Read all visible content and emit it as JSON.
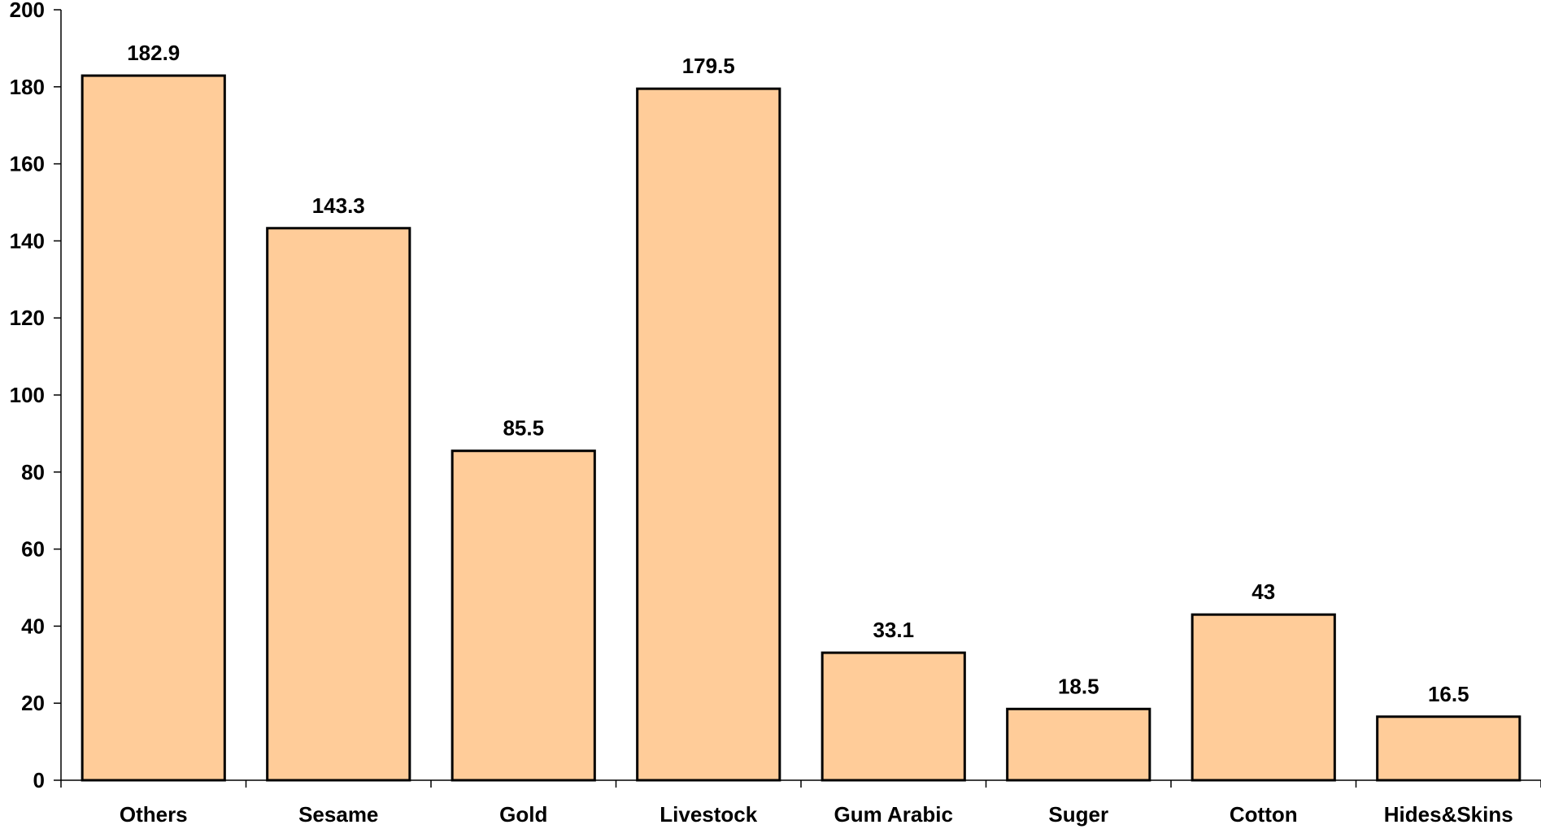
{
  "chart_data": {
    "type": "bar",
    "categories": [
      "Others",
      "Sesame",
      "Gold",
      "Livestock",
      "Gum Arabic",
      "Suger",
      "Cotton",
      "Hides&Skins"
    ],
    "values": [
      182.9,
      143.3,
      85.5,
      179.5,
      33.1,
      18.5,
      43,
      16.5
    ],
    "data_labels": [
      "182.9",
      "143.3",
      "85.5",
      "179.5",
      "33.1",
      "18.5",
      "43",
      "16.5"
    ],
    "yticks": [
      0,
      20,
      40,
      60,
      80,
      100,
      120,
      140,
      160,
      180,
      200
    ],
    "ylim": [
      0,
      200
    ],
    "title": "",
    "xlabel": "",
    "ylabel": "",
    "grid": false,
    "legend": "none",
    "bar_color": "#FFCC99",
    "bar_edge_color": "#000000"
  }
}
